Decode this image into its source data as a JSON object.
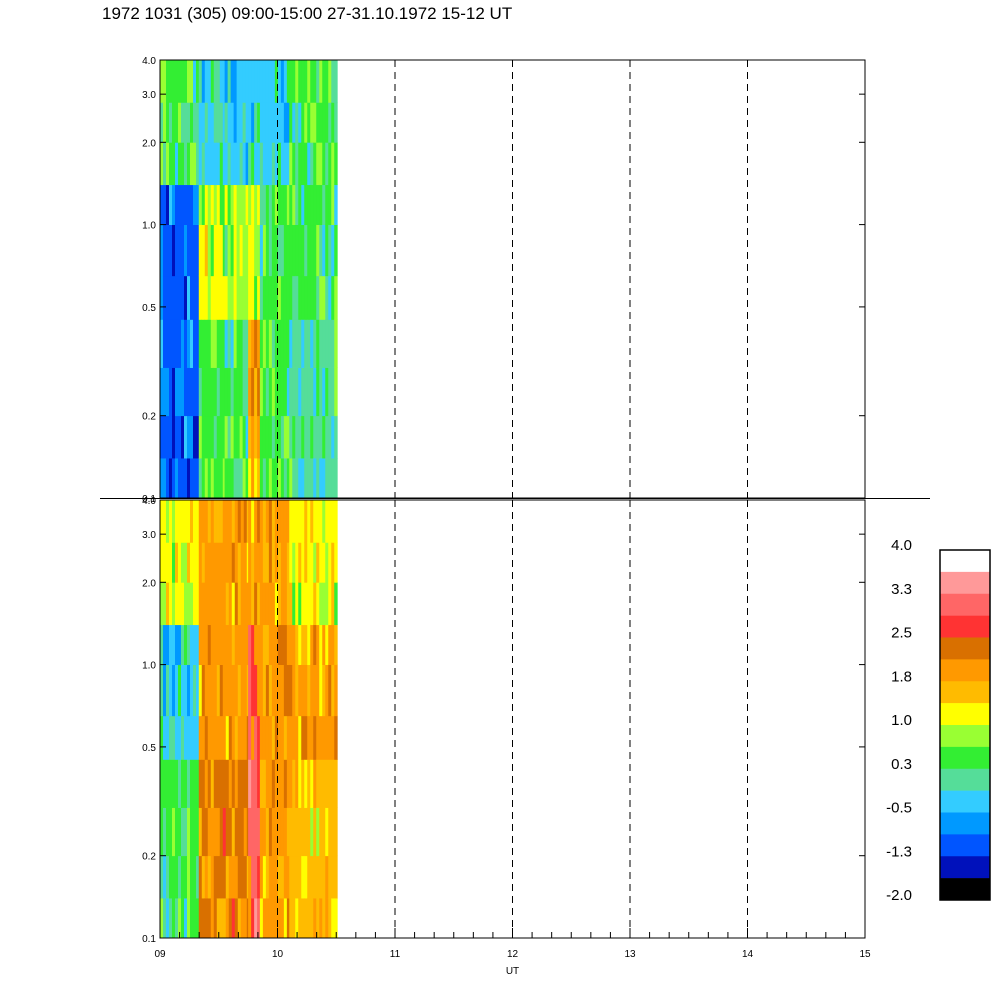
{
  "title": "1972 1031 (305) 09:00-15:00 27-31.10.1972  15-12 UT",
  "chart_data": {
    "type": "heatmap",
    "title": "1972 1031 (305) 09:00-15:00 27-31.10.1972  15-12 UT",
    "xlabel": "UT",
    "x_ticks": [
      "09",
      "10",
      "11",
      "12",
      "13",
      "14",
      "15"
    ],
    "x_range": [
      9,
      15
    ],
    "y_scale": "log",
    "y_range": [
      0.1,
      4.0
    ],
    "y_ticks": [
      "0.1",
      "0.2",
      "0.5",
      "1.0",
      "2.0",
      "3.0",
      "4.0"
    ],
    "dashed_gridlines_x": [
      10,
      11,
      12,
      13,
      14
    ],
    "data_coverage_x": [
      9.0,
      10.5
    ],
    "panels": [
      {
        "name": "upper",
        "columns": [
          {
            "x_start": 9.0,
            "x_end": 9.33,
            "low": "blue",
            "mid": "blue",
            "high": "green"
          },
          {
            "x_start": 9.33,
            "x_end": 9.55,
            "low": "green",
            "mid": "yellow",
            "high": "cyan"
          },
          {
            "x_start": 9.55,
            "x_end": 9.75,
            "low": "green",
            "mid": "yellow-green",
            "high": "cyan"
          },
          {
            "x_start": 9.75,
            "x_end": 9.85,
            "low": "orange",
            "mid": "yellow",
            "high": "cyan"
          },
          {
            "x_start": 9.85,
            "x_end": 10.1,
            "low": "green",
            "mid": "green",
            "high": "cyan"
          },
          {
            "x_start": 10.1,
            "x_end": 10.5,
            "low": "teal",
            "mid": "green",
            "high": "green"
          }
        ]
      },
      {
        "name": "lower",
        "columns": [
          {
            "x_start": 9.0,
            "x_end": 9.33,
            "low": "green",
            "mid": "cyan",
            "high": "yellow"
          },
          {
            "x_start": 9.33,
            "x_end": 9.75,
            "low": "dark-orange",
            "mid": "orange",
            "high": "orange"
          },
          {
            "x_start": 9.75,
            "x_end": 9.85,
            "low": "pink",
            "mid": "red",
            "high": "orange"
          },
          {
            "x_start": 9.85,
            "x_end": 10.1,
            "low": "orange",
            "mid": "orange",
            "high": "orange"
          },
          {
            "x_start": 10.1,
            "x_end": 10.5,
            "low": "amber",
            "mid": "orange",
            "high": "yellow"
          }
        ]
      }
    ],
    "colorbar": {
      "labels": [
        "4.0",
        "3.3",
        "2.5",
        "1.8",
        "1.0",
        "0.3",
        "-0.5",
        "-1.3",
        "-2.0"
      ],
      "colors": [
        "#ffffff",
        "#ff9999",
        "#ff6666",
        "#ff3333",
        "#d97000",
        "#ff9900",
        "#ffbb00",
        "#ffff00",
        "#99ff33",
        "#33ee33",
        "#55dd99",
        "#33ccff",
        "#0099ff",
        "#0055ff",
        "#0011bb",
        "#000000"
      ]
    }
  }
}
